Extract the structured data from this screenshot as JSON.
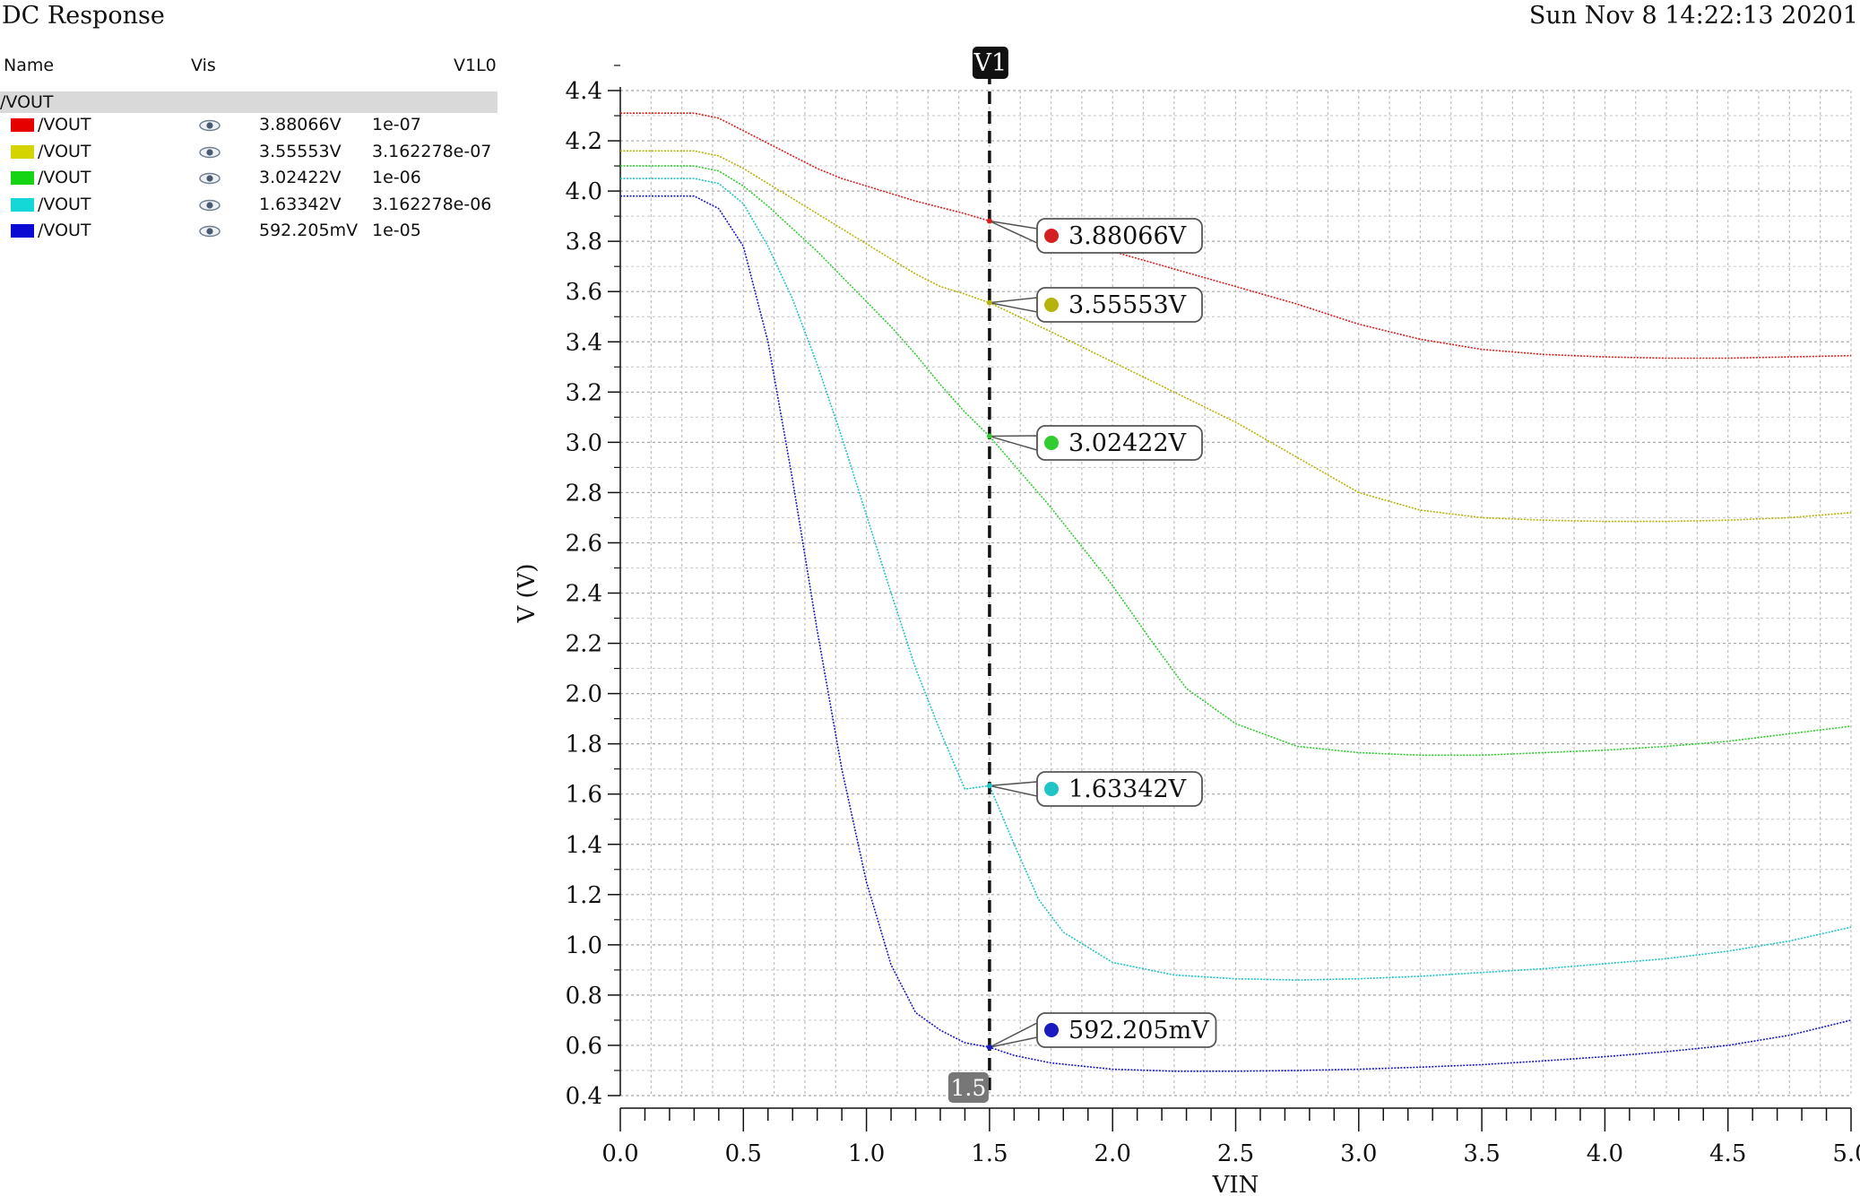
{
  "window": {
    "title": "DC Response",
    "datestamp": "Sun Nov 8 14:22:13 20201"
  },
  "legend": {
    "col_name": "Name",
    "col_vis": "Vis",
    "col_marker": "V1L0",
    "group": "/VOUT",
    "rows": [
      {
        "name": "/VOUT",
        "color": "#e60000",
        "value": "3.88066V",
        "param": "1e-07"
      },
      {
        "name": "/VOUT",
        "color": "#d4d400",
        "value": "3.55553V",
        "param": "3.162278e-07"
      },
      {
        "name": "/VOUT",
        "color": "#14d414",
        "value": "3.02422V",
        "param": "1e-06"
      },
      {
        "name": "/VOUT",
        "color": "#14d8d8",
        "value": "1.63342V",
        "param": "3.162278e-06"
      },
      {
        "name": "/VOUT",
        "color": "#0a0ad2",
        "value": "592.205mV",
        "param": "1e-05"
      }
    ],
    "vis_icon": "eye-icon"
  },
  "chart_data": {
    "type": "line",
    "xlabel": "VIN",
    "ylabel": "V (V)",
    "xlim": [
      0,
      5
    ],
    "ylim": [
      0.4,
      4.4
    ],
    "x_ticks": [
      "0.0",
      "0.5",
      "1.0",
      "1.5",
      "2.0",
      "2.5",
      "3.0",
      "3.5",
      "4.0",
      "4.5",
      "5.0"
    ],
    "y_ticks": [
      "0.4",
      "0.6",
      "0.8",
      "1.0",
      "1.2",
      "1.4",
      "1.6",
      "1.8",
      "2.0",
      "2.2",
      "2.4",
      "2.6",
      "2.8",
      "3.0",
      "3.2",
      "3.4",
      "3.6",
      "3.8",
      "4.0",
      "4.2",
      "4.4"
    ],
    "grid": true,
    "cursor": {
      "name": "V1",
      "x": 1.5,
      "x_label": "1.5"
    },
    "series": [
      {
        "color": "#d42020",
        "marker_label": "3.88066V",
        "marker_value": 3.88066,
        "x": [
          0,
          0.3,
          0.4,
          0.5,
          0.6,
          0.7,
          0.8,
          0.9,
          1.0,
          1.1,
          1.2,
          1.3,
          1.4,
          1.5,
          1.75,
          2.0,
          2.25,
          2.5,
          2.75,
          3.0,
          3.25,
          3.5,
          3.75,
          4.0,
          4.25,
          4.5,
          4.75,
          5.0
        ],
        "y": [
          4.31,
          4.31,
          4.29,
          4.24,
          4.19,
          4.14,
          4.09,
          4.05,
          4.02,
          3.99,
          3.96,
          3.935,
          3.91,
          3.88066,
          3.82,
          3.76,
          3.69,
          3.62,
          3.55,
          3.47,
          3.41,
          3.37,
          3.35,
          3.34,
          3.335,
          3.335,
          3.34,
          3.345
        ]
      },
      {
        "color": "#b4b40a",
        "marker_label": "3.55553V",
        "marker_value": 3.55553,
        "x": [
          0,
          0.3,
          0.4,
          0.5,
          0.6,
          0.7,
          0.8,
          0.9,
          1.0,
          1.1,
          1.2,
          1.3,
          1.4,
          1.5,
          1.75,
          2.0,
          2.25,
          2.5,
          2.75,
          3.0,
          3.25,
          3.5,
          3.75,
          4.0,
          4.25,
          4.5,
          4.75,
          5.0
        ],
        "y": [
          4.16,
          4.16,
          4.14,
          4.09,
          4.03,
          3.97,
          3.91,
          3.85,
          3.79,
          3.73,
          3.67,
          3.62,
          3.59,
          3.55553,
          3.44,
          3.32,
          3.2,
          3.08,
          2.94,
          2.8,
          2.73,
          2.7,
          2.69,
          2.685,
          2.685,
          2.69,
          2.7,
          2.72
        ]
      },
      {
        "color": "#30cc30",
        "marker_label": "3.02422V",
        "marker_value": 3.02422,
        "x": [
          0,
          0.3,
          0.4,
          0.5,
          0.6,
          0.7,
          0.8,
          0.9,
          1.0,
          1.1,
          1.2,
          1.3,
          1.4,
          1.5,
          1.75,
          2.0,
          2.15,
          2.3,
          2.5,
          2.75,
          3.0,
          3.25,
          3.5,
          3.75,
          4.0,
          4.25,
          4.5,
          4.75,
          5.0
        ],
        "y": [
          4.1,
          4.1,
          4.08,
          4.02,
          3.94,
          3.85,
          3.76,
          3.66,
          3.56,
          3.46,
          3.35,
          3.23,
          3.12,
          3.02422,
          2.74,
          2.43,
          2.22,
          2.02,
          1.88,
          1.79,
          1.765,
          1.755,
          1.755,
          1.765,
          1.775,
          1.79,
          1.81,
          1.84,
          1.87
        ]
      },
      {
        "color": "#20c4c4",
        "marker_label": "1.63342V",
        "marker_value": 1.63342,
        "x": [
          0,
          0.3,
          0.4,
          0.5,
          0.6,
          0.7,
          0.8,
          0.9,
          1.0,
          1.1,
          1.2,
          1.3,
          1.4,
          1.5,
          1.6,
          1.7,
          1.8,
          2.0,
          2.25,
          2.5,
          2.75,
          3.0,
          3.25,
          3.5,
          3.75,
          4.0,
          4.25,
          4.5,
          4.75,
          5.0
        ],
        "y": [
          4.05,
          4.05,
          4.03,
          3.95,
          3.78,
          3.57,
          3.31,
          3.02,
          2.71,
          2.4,
          2.1,
          1.85,
          1.62,
          1.63342,
          1.4,
          1.18,
          1.05,
          0.93,
          0.88,
          0.865,
          0.86,
          0.865,
          0.875,
          0.89,
          0.905,
          0.925,
          0.945,
          0.975,
          1.015,
          1.07
        ]
      },
      {
        "color": "#1a1ac0",
        "marker_label": "592.205mV",
        "marker_value": 0.592205,
        "x": [
          0,
          0.3,
          0.4,
          0.5,
          0.6,
          0.7,
          0.8,
          0.9,
          1.0,
          1.1,
          1.2,
          1.3,
          1.4,
          1.5,
          1.6,
          1.75,
          2.0,
          2.25,
          2.5,
          2.75,
          3.0,
          3.25,
          3.5,
          3.75,
          4.0,
          4.25,
          4.5,
          4.75,
          5.0
        ],
        "y": [
          3.98,
          3.98,
          3.93,
          3.78,
          3.4,
          2.85,
          2.25,
          1.7,
          1.25,
          0.92,
          0.73,
          0.66,
          0.61,
          0.592205,
          0.56,
          0.53,
          0.505,
          0.497,
          0.497,
          0.5,
          0.505,
          0.513,
          0.523,
          0.538,
          0.555,
          0.575,
          0.6,
          0.64,
          0.7
        ]
      }
    ]
  }
}
